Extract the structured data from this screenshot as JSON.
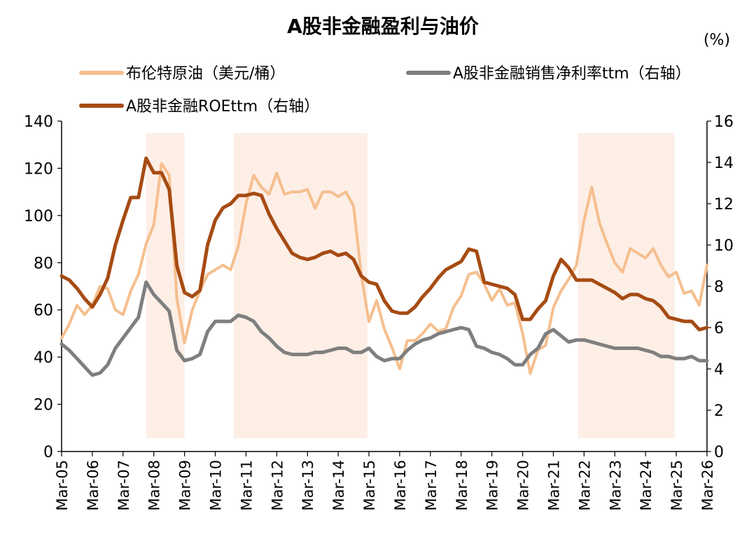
{
  "chart_data": {
    "type": "line",
    "title": "A股非金融盈利与油价",
    "right_unit": "(%)",
    "x_tick_labels": [
      "Mar-05",
      "Mar-06",
      "Mar-07",
      "Mar-08",
      "Mar-09",
      "Mar-10",
      "Mar-11",
      "Mar-12",
      "Mar-13",
      "Mar-14",
      "Mar-15",
      "Mar-16",
      "Mar-17",
      "Mar-18",
      "Mar-19",
      "Mar-20",
      "Mar-21",
      "Mar-22",
      "Mar-23",
      "Mar-24",
      "Mar-25",
      "Mar-26"
    ],
    "x_range": [
      2005.0,
      2026.0
    ],
    "left_axis": {
      "min": 0,
      "max": 140,
      "step": 20
    },
    "right_axis": {
      "min": 0,
      "max": 16,
      "step": 2
    },
    "legend_position": "top",
    "shaded_periods": [
      [
        2007.75,
        2009.0
      ],
      [
        2010.6,
        2014.95
      ],
      [
        2021.8,
        2024.95
      ]
    ],
    "series": [
      {
        "name": "布伦特原油（美元/桶）",
        "axis": "left",
        "color": "#F5BF8F",
        "stroke_width": 4,
        "x": [
          2005.0,
          2005.25,
          2005.5,
          2005.75,
          2006.0,
          2006.25,
          2006.5,
          2006.75,
          2007.0,
          2007.25,
          2007.5,
          2007.75,
          2008.0,
          2008.25,
          2008.5,
          2008.75,
          2009.0,
          2009.25,
          2009.5,
          2009.75,
          2010.0,
          2010.25,
          2010.5,
          2010.75,
          2011.0,
          2011.25,
          2011.5,
          2011.75,
          2012.0,
          2012.25,
          2012.5,
          2012.75,
          2013.0,
          2013.25,
          2013.5,
          2013.75,
          2014.0,
          2014.25,
          2014.5,
          2014.75,
          2015.0,
          2015.25,
          2015.5,
          2015.75,
          2016.0,
          2016.25,
          2016.5,
          2016.75,
          2017.0,
          2017.25,
          2017.5,
          2017.75,
          2018.0,
          2018.25,
          2018.5,
          2018.75,
          2019.0,
          2019.25,
          2019.5,
          2019.75,
          2020.0,
          2020.25,
          2020.5,
          2020.75,
          2021.0,
          2021.25,
          2021.5,
          2021.75,
          2022.0,
          2022.25,
          2022.5,
          2022.75,
          2023.0,
          2023.25,
          2023.5,
          2023.75,
          2024.0,
          2024.25,
          2024.5,
          2024.75,
          2025.0,
          2025.25,
          2025.5,
          2025.75,
          2026.0
        ],
        "values": [
          48,
          54,
          62,
          58,
          62,
          70,
          69,
          60,
          58,
          68,
          75,
          88,
          96,
          122,
          117,
          65,
          46,
          60,
          68,
          75,
          77,
          79,
          77,
          87,
          105,
          117,
          112,
          109,
          118,
          109,
          110,
          110,
          111,
          103,
          110,
          110,
          108,
          110,
          104,
          75,
          55,
          64,
          52,
          44,
          35,
          47,
          47,
          50,
          54,
          51,
          52,
          61,
          66,
          75,
          76,
          71,
          64,
          69,
          62,
          63,
          50,
          33,
          43,
          45,
          61,
          68,
          73,
          79,
          98,
          112,
          97,
          88,
          80,
          76,
          86,
          84,
          82,
          86,
          79,
          74,
          76,
          67,
          68,
          62,
          79
        ]
      },
      {
        "name": "A股非金融销售净利率ttm（右轴）",
        "axis": "right",
        "color": "#7F7F7F",
        "stroke_width": 5,
        "x": [
          2005.0,
          2005.25,
          2005.5,
          2005.75,
          2006.0,
          2006.25,
          2006.5,
          2006.75,
          2007.0,
          2007.25,
          2007.5,
          2007.75,
          2008.0,
          2008.25,
          2008.5,
          2008.75,
          2009.0,
          2009.25,
          2009.5,
          2009.75,
          2010.0,
          2010.25,
          2010.5,
          2010.75,
          2011.0,
          2011.25,
          2011.5,
          2011.75,
          2012.0,
          2012.25,
          2012.5,
          2012.75,
          2013.0,
          2013.25,
          2013.5,
          2013.75,
          2014.0,
          2014.25,
          2014.5,
          2014.75,
          2015.0,
          2015.25,
          2015.5,
          2015.75,
          2016.0,
          2016.25,
          2016.5,
          2016.75,
          2017.0,
          2017.25,
          2017.5,
          2017.75,
          2018.0,
          2018.25,
          2018.5,
          2018.75,
          2019.0,
          2019.25,
          2019.5,
          2019.75,
          2020.0,
          2020.25,
          2020.5,
          2020.75,
          2021.0,
          2021.25,
          2021.5,
          2021.75,
          2022.0,
          2022.25,
          2022.5,
          2022.75,
          2023.0,
          2023.25,
          2023.5,
          2023.75,
          2024.0,
          2024.25,
          2024.5,
          2024.75,
          2025.0,
          2025.25,
          2025.5,
          2025.75,
          2026.0
        ],
        "values": [
          5.2,
          4.9,
          4.5,
          4.1,
          3.7,
          3.8,
          4.2,
          5.0,
          5.5,
          6.0,
          6.5,
          8.2,
          7.6,
          7.2,
          6.8,
          4.9,
          4.4,
          4.5,
          4.7,
          5.8,
          6.3,
          6.3,
          6.3,
          6.6,
          6.5,
          6.3,
          5.8,
          5.5,
          5.1,
          4.8,
          4.7,
          4.7,
          4.7,
          4.8,
          4.8,
          4.9,
          5.0,
          5.0,
          4.8,
          4.8,
          5.0,
          4.6,
          4.4,
          4.5,
          4.5,
          4.9,
          5.2,
          5.4,
          5.5,
          5.7,
          5.8,
          5.9,
          6.0,
          5.9,
          5.1,
          5.0,
          4.8,
          4.7,
          4.5,
          4.2,
          4.2,
          4.7,
          5.0,
          5.7,
          5.9,
          5.6,
          5.3,
          5.4,
          5.4,
          5.3,
          5.2,
          5.1,
          5.0,
          5.0,
          5.0,
          5.0,
          4.9,
          4.8,
          4.6,
          4.6,
          4.5,
          4.5,
          4.6,
          4.4,
          4.4
        ]
      },
      {
        "name": "A股非金融ROEttm（右轴）",
        "axis": "right",
        "color": "#A64B13",
        "stroke_width": 5,
        "x": [
          2005.0,
          2005.25,
          2005.5,
          2005.75,
          2006.0,
          2006.25,
          2006.5,
          2006.75,
          2007.0,
          2007.25,
          2007.5,
          2007.75,
          2008.0,
          2008.25,
          2008.5,
          2008.75,
          2009.0,
          2009.25,
          2009.5,
          2009.75,
          2010.0,
          2010.25,
          2010.5,
          2010.75,
          2011.0,
          2011.25,
          2011.5,
          2011.75,
          2012.0,
          2012.25,
          2012.5,
          2012.75,
          2013.0,
          2013.25,
          2013.5,
          2013.75,
          2014.0,
          2014.25,
          2014.5,
          2014.75,
          2015.0,
          2015.25,
          2015.5,
          2015.75,
          2016.0,
          2016.25,
          2016.5,
          2016.75,
          2017.0,
          2017.25,
          2017.5,
          2017.75,
          2018.0,
          2018.25,
          2018.5,
          2018.75,
          2019.0,
          2019.25,
          2019.5,
          2019.75,
          2020.0,
          2020.25,
          2020.5,
          2020.75,
          2021.0,
          2021.25,
          2021.5,
          2021.75,
          2022.0,
          2022.25,
          2022.5,
          2022.75,
          2023.0,
          2023.25,
          2023.5,
          2023.75,
          2024.0,
          2024.25,
          2024.5,
          2024.75,
          2025.0,
          2025.25,
          2025.5,
          2025.75,
          2026.0
        ],
        "values": [
          8.5,
          8.3,
          7.9,
          7.4,
          7.0,
          7.6,
          8.4,
          10.0,
          11.2,
          12.3,
          12.3,
          14.2,
          13.5,
          13.5,
          12.7,
          9.0,
          7.7,
          7.5,
          7.8,
          10.0,
          11.2,
          11.8,
          12.0,
          12.4,
          12.4,
          12.5,
          12.4,
          11.5,
          10.8,
          10.2,
          9.6,
          9.4,
          9.3,
          9.4,
          9.6,
          9.7,
          9.5,
          9.6,
          9.3,
          8.5,
          8.2,
          8.1,
          7.3,
          6.8,
          6.7,
          6.7,
          7.0,
          7.5,
          7.9,
          8.4,
          8.8,
          9.0,
          9.2,
          9.8,
          9.7,
          8.2,
          8.1,
          8.0,
          7.9,
          7.6,
          6.4,
          6.4,
          6.9,
          7.3,
          8.5,
          9.3,
          8.9,
          8.3,
          8.3,
          8.3,
          8.1,
          7.9,
          7.7,
          7.4,
          7.6,
          7.6,
          7.4,
          7.3,
          7.0,
          6.5,
          6.4,
          6.3,
          6.3,
          5.9,
          6.0
        ]
      }
    ]
  }
}
